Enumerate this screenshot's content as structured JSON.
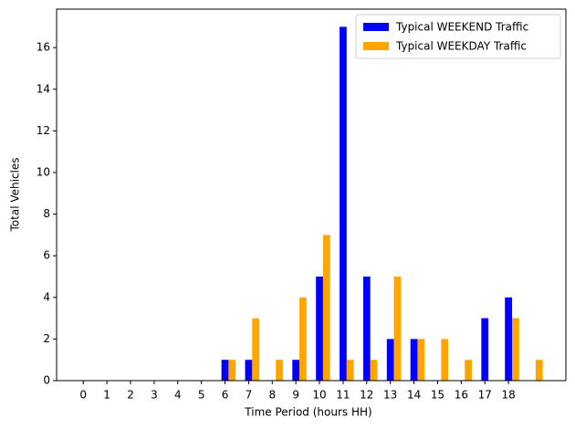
{
  "chart_data": {
    "type": "bar",
    "xlabel": "Time Period (hours HH)",
    "ylabel": "Total Vehicles",
    "categories": [
      "0",
      "1",
      "2",
      "3",
      "4",
      "5",
      "6",
      "7",
      "8",
      "9",
      "10",
      "11",
      "12",
      "13",
      "14",
      "15",
      "16",
      "17",
      "18",
      null
    ],
    "series": [
      {
        "name": "Typical WEEKEND Traffic",
        "color": "#0000ff",
        "values": [
          0,
          0,
          0,
          0,
          0,
          0,
          1,
          1,
          0,
          1,
          5,
          17,
          5,
          2,
          2,
          0,
          0,
          3,
          4,
          0
        ]
      },
      {
        "name": "Typical WEEKDAY Traffic",
        "color": "#ffa500",
        "values": [
          0,
          0,
          0,
          0,
          0,
          0,
          1,
          3,
          1,
          4,
          7,
          1,
          1,
          5,
          2,
          2,
          1,
          0,
          3,
          1
        ]
      }
    ],
    "xlim": [
      -1.13,
      20.43
    ],
    "ylim": [
      0,
      17.85
    ],
    "yticks": [
      0,
      2,
      4,
      6,
      8,
      10,
      12,
      14,
      16
    ],
    "legend": "upper right"
  }
}
